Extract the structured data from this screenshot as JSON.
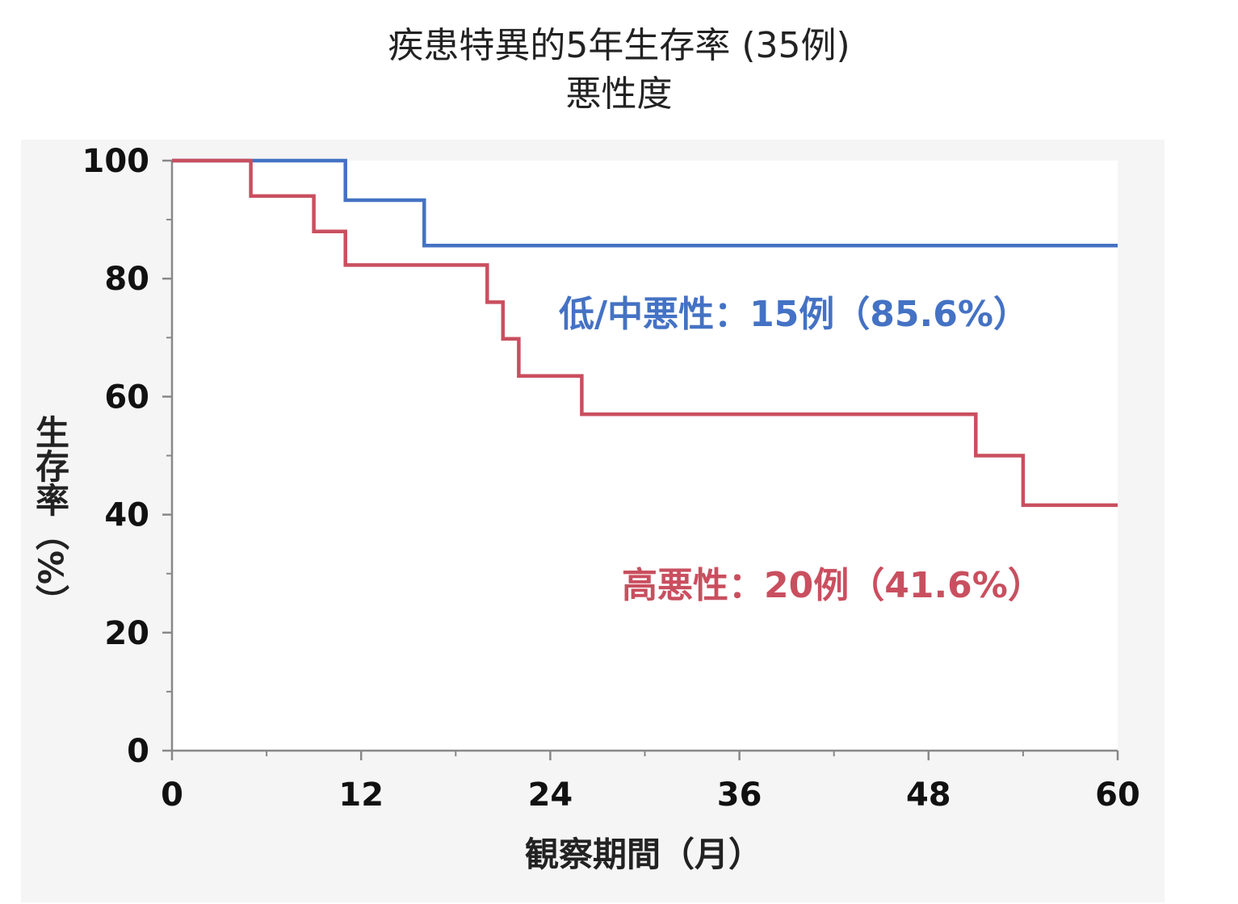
{
  "chart_data": {
    "type": "line",
    "step": true,
    "title": "疾患特異的5年生存率 (35例)",
    "subtitle": "悪性度",
    "xlabel": "観察期間（月）",
    "ylabel": "生存率（%）",
    "xlim": [
      0,
      60
    ],
    "ylim": [
      0,
      100
    ],
    "xticks": [
      0,
      12,
      24,
      36,
      48,
      60
    ],
    "yticks": [
      0,
      20,
      40,
      60,
      80,
      100
    ],
    "x_minor_ticks": [
      6,
      18,
      30,
      42,
      54
    ],
    "y_minor_ticks": [
      10,
      30,
      50,
      70,
      90
    ],
    "grid": false,
    "series": [
      {
        "name": "低/中悪性：15例（85.6%）",
        "color": "#4472c4",
        "points": [
          [
            0,
            100
          ],
          [
            11,
            100
          ],
          [
            11,
            93.3
          ],
          [
            16,
            93.3
          ],
          [
            16,
            85.6
          ],
          [
            60,
            85.6
          ]
        ]
      },
      {
        "name": "高悪性：20例（41.6%）",
        "color": "#c94f5f",
        "points": [
          [
            0,
            100
          ],
          [
            5,
            100
          ],
          [
            5,
            94
          ],
          [
            9,
            94
          ],
          [
            9,
            88
          ],
          [
            11,
            88
          ],
          [
            11,
            82.3
          ],
          [
            20,
            82.3
          ],
          [
            20,
            76
          ],
          [
            21,
            76
          ],
          [
            21,
            69.8
          ],
          [
            22,
            69.8
          ],
          [
            22,
            63.5
          ],
          [
            26,
            63.5
          ],
          [
            26,
            57
          ],
          [
            51,
            57
          ],
          [
            51,
            50
          ],
          [
            54,
            50
          ],
          [
            54,
            41.6
          ],
          [
            60,
            41.6
          ]
        ]
      }
    ]
  }
}
